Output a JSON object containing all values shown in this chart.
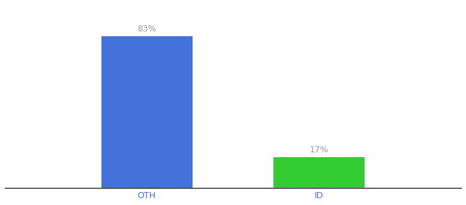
{
  "categories": [
    "OTH",
    "ID"
  ],
  "values": [
    83,
    17
  ],
  "bar_colors": [
    "#4472db",
    "#33cc33"
  ],
  "label_texts": [
    "83%",
    "17%"
  ],
  "background_color": "#ffffff",
  "bar_width": 0.18,
  "ylim": [
    0,
    100
  ],
  "label_color": "#999999",
  "label_fontsize": 9,
  "tick_fontsize": 9,
  "tick_color": "#4472db",
  "x_positions": [
    0.33,
    0.67
  ]
}
